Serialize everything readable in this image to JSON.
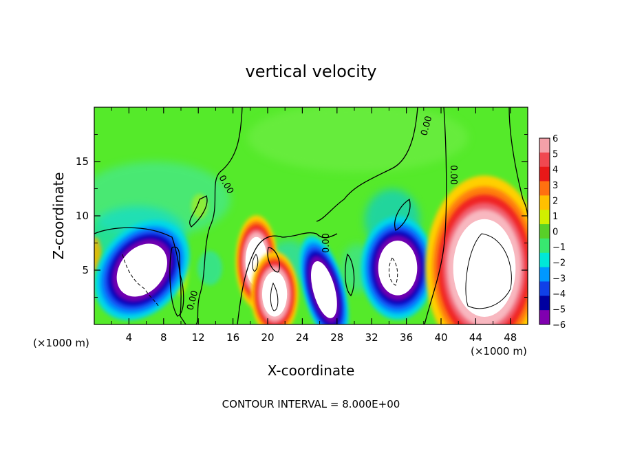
{
  "chart_data": {
    "type": "heatmap",
    "title": "vertical velocity",
    "xlabel": "X-coordinate",
    "ylabel": "Z-coordinate",
    "x_unit_left": "(×1000 m)",
    "x_unit_right": "(×1000 m)",
    "footer": "CONTOUR INTERVAL = 8.000E+00",
    "xlim": [
      0,
      50
    ],
    "ylim": [
      0,
      20
    ],
    "x_ticks": [
      4,
      8,
      12,
      16,
      20,
      24,
      28,
      32,
      36,
      40,
      44,
      48
    ],
    "y_ticks": [
      5,
      10,
      15
    ],
    "colorbar": {
      "levels": [
        6,
        5,
        4,
        3,
        2,
        1,
        0,
        -1,
        -2,
        -3,
        -4,
        -5,
        -6
      ],
      "colors": [
        "#f4a0a8",
        "#f04850",
        "#e81818",
        "#ff7010",
        "#ffc000",
        "#d0f000",
        "#58d028",
        "#38e870",
        "#00e8d8",
        "#0098ff",
        "#1040e8",
        "#0000a0",
        "#8000b0"
      ],
      "background": "#55ea2a"
    },
    "contour_labels": [
      "0.00",
      "0.00",
      "0.00",
      "0.00",
      "0.00"
    ],
    "features": [
      {
        "name": "downdraft-1",
        "x": 5.5,
        "z": 5.0,
        "rx": 2.8,
        "rz": 3.0,
        "sign": "negative",
        "rotate": 40
      },
      {
        "name": "updraft-1",
        "x": 18.7,
        "z": 5.8,
        "rx": 1.4,
        "rz": 2.5,
        "sign": "positive",
        "rotate": 0
      },
      {
        "name": "updraft-2",
        "x": 20.8,
        "z": 2.8,
        "rx": 1.6,
        "rz": 2.3,
        "sign": "positive",
        "rotate": 0
      },
      {
        "name": "downdraft-2",
        "x": 26.5,
        "z": 3.2,
        "rx": 1.4,
        "rz": 3.0,
        "sign": "negative",
        "rotate": -15
      },
      {
        "name": "downdraft-3",
        "x": 35.0,
        "z": 5.2,
        "rx": 2.5,
        "rz": 2.8,
        "sign": "negative",
        "rotate": 0
      },
      {
        "name": "updraft-3",
        "x": 45.0,
        "z": 5.2,
        "rx": 4.0,
        "rz": 5.0,
        "sign": "positive",
        "rotate": 0
      }
    ]
  }
}
